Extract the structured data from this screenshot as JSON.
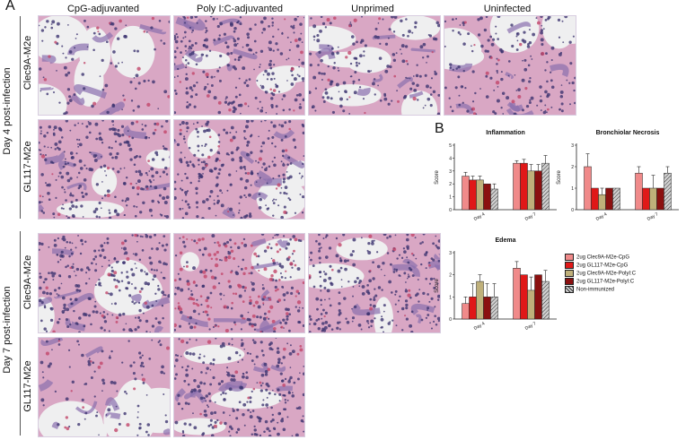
{
  "panel_a_label": "A",
  "panel_b_label": "B",
  "columns": [
    "CpG-adjuvanted",
    "Poly I:C-adjuvanted",
    "Unprimed",
    "Uninfected"
  ],
  "day_labels": [
    "Day 4 post-infection",
    "Day 7 post-infection"
  ],
  "row_labels": [
    "Clec9A-M2e",
    "GL117-M2e",
    "Clec9A-M2e",
    "GL117-M2e"
  ],
  "colors": {
    "tissue_pink": "#d9a7c4",
    "tissue_purple": "#8a6fae",
    "nuclei": "#3d3470",
    "lumen": "#efeff0",
    "rbc": "#c2466a"
  },
  "legend": [
    {
      "label": "2ug Clec9A-M2e-CpG",
      "color": "#f08a8a",
      "pattern": "solid"
    },
    {
      "label": "2ug GL117-M2e-CpG",
      "color": "#e01818",
      "pattern": "solid"
    },
    {
      "label": "2ug Clec9A-M2e-PolyI:C",
      "color": "#bfb07a",
      "pattern": "solid"
    },
    {
      "label": "2ug GL117-M2e-PolyI:C",
      "color": "#8b1010",
      "pattern": "solid"
    },
    {
      "label": "Non-immunized",
      "color": "#bfbfbf",
      "pattern": "hatch"
    }
  ],
  "chart_data": [
    {
      "type": "bar",
      "title": "Inflammation",
      "ylabel": "Score",
      "categories": [
        "Day 4",
        "Day 7"
      ],
      "ylim": [
        0,
        5
      ],
      "yticks": [
        0,
        1,
        2,
        3,
        4,
        5
      ],
      "series": [
        {
          "name": "2ug Clec9A-M2e-CpG",
          "values": [
            2.6,
            3.6
          ],
          "errors": [
            0.3,
            0.2
          ]
        },
        {
          "name": "2ug GL117-M2e-CpG",
          "values": [
            2.3,
            3.6
          ],
          "errors": [
            0.3,
            0.3
          ]
        },
        {
          "name": "2ug Clec9A-M2e-PolyI:C",
          "values": [
            2.3,
            3.0
          ],
          "errors": [
            0.3,
            0.5
          ]
        },
        {
          "name": "2ug GL117-M2e-PolyI:C",
          "values": [
            2.0,
            3.0
          ],
          "errors": [
            0.0,
            0.5
          ]
        },
        {
          "name": "Non-immunized",
          "values": [
            1.6,
            3.6
          ],
          "errors": [
            0.4,
            0.6
          ]
        }
      ]
    },
    {
      "type": "bar",
      "title": "Bronchiolar Necrosis",
      "ylabel": "Score",
      "categories": [
        "Day 4",
        "Day 7"
      ],
      "ylim": [
        0,
        3
      ],
      "yticks": [
        0,
        1,
        2,
        3
      ],
      "series": [
        {
          "name": "2ug Clec9A-M2e-CpG",
          "values": [
            2.0,
            1.7
          ],
          "errors": [
            0.6,
            0.3
          ]
        },
        {
          "name": "2ug GL117-M2e-CpG",
          "values": [
            1.0,
            1.0
          ],
          "errors": [
            0.0,
            0.0
          ]
        },
        {
          "name": "2ug Clec9A-M2e-PolyI:C",
          "values": [
            0.7,
            1.0
          ],
          "errors": [
            0.3,
            0.6
          ]
        },
        {
          "name": "2ug GL117-M2e-PolyI:C",
          "values": [
            1.0,
            1.0
          ],
          "errors": [
            0.0,
            0.0
          ]
        },
        {
          "name": "Non-immunized",
          "values": [
            1.0,
            1.7
          ],
          "errors": [
            0.0,
            0.3
          ]
        }
      ]
    },
    {
      "type": "bar",
      "title": "Edema",
      "ylabel": "Score",
      "categories": [
        "Day 4",
        "Day 7"
      ],
      "ylim": [
        0,
        3
      ],
      "yticks": [
        0,
        1,
        2,
        3
      ],
      "series": [
        {
          "name": "2ug Clec9A-M2e-CpG",
          "values": [
            0.7,
            2.3
          ],
          "errors": [
            0.3,
            0.3
          ]
        },
        {
          "name": "2ug GL117-M2e-CpG",
          "values": [
            1.0,
            2.0
          ],
          "errors": [
            0.6,
            0.0
          ]
        },
        {
          "name": "2ug Clec9A-M2e-PolyI:C",
          "values": [
            1.7,
            1.3
          ],
          "errors": [
            0.3,
            0.6
          ]
        },
        {
          "name": "2ug GL117-M2e-PolyI:C",
          "values": [
            1.0,
            2.0
          ],
          "errors": [
            0.6,
            0.0
          ]
        },
        {
          "name": "Non-immunized",
          "values": [
            1.0,
            1.7
          ],
          "errors": [
            0.6,
            0.5
          ]
        }
      ]
    }
  ]
}
